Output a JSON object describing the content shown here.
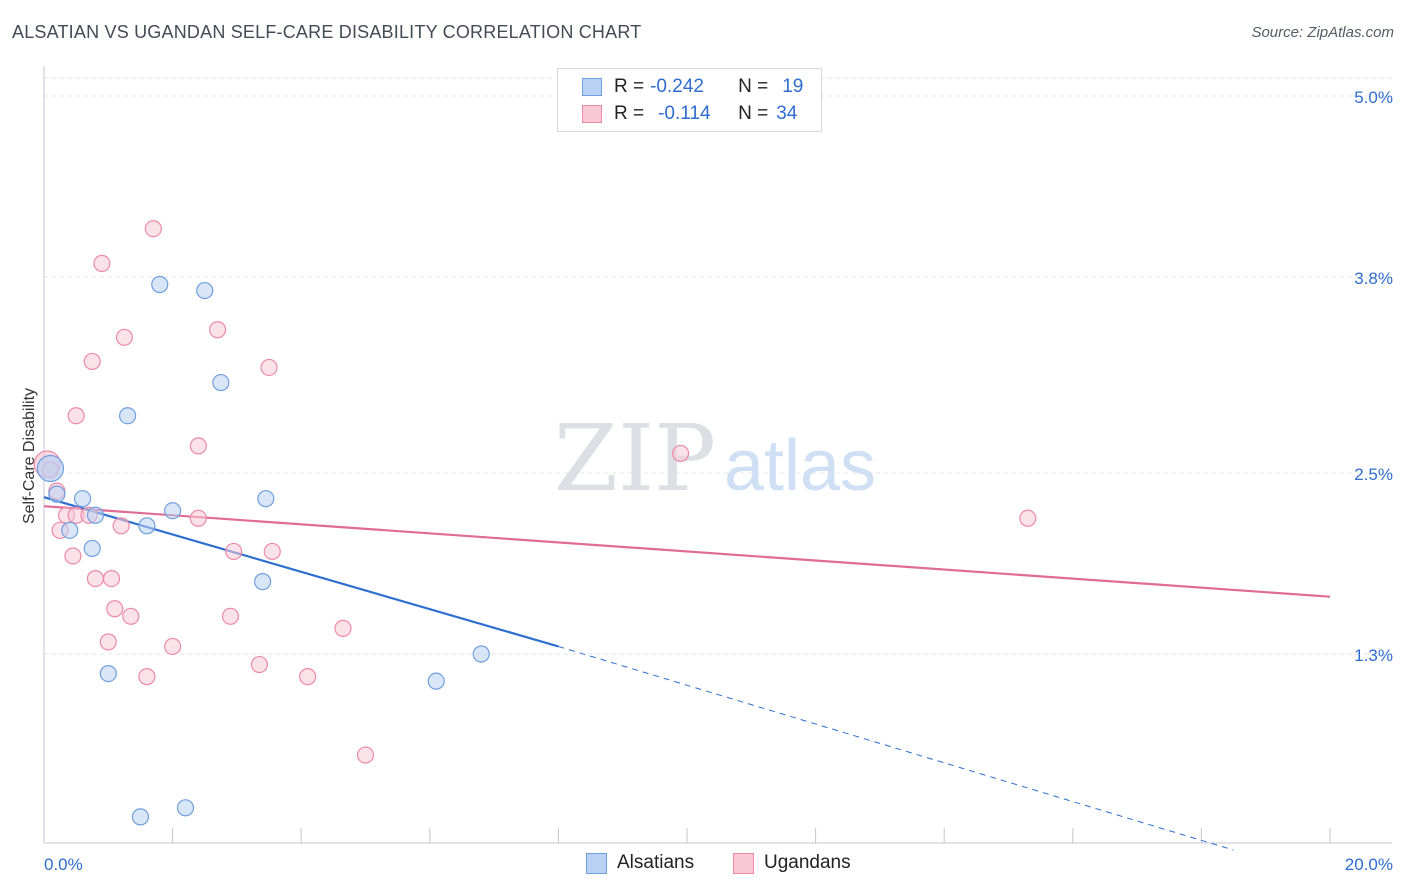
{
  "title": "ALSATIAN VS UGANDAN SELF-CARE DISABILITY CORRELATION CHART",
  "source": "Source: ZipAtlas.com",
  "watermark": {
    "zip": "ZIP",
    "atlas": "atlas"
  },
  "legend": {
    "rows": [
      {
        "r_label": "R =",
        "r_value": "-0.242",
        "n_label": "N =",
        "n_value": "19"
      },
      {
        "r_label": "R =",
        "r_value": "-0.114",
        "n_label": "N =",
        "n_value": "34"
      }
    ]
  },
  "bottom_legend": {
    "alsatians": "Alsatians",
    "ugandans": "Ugandans"
  },
  "colors": {
    "blue_fill": "#b9d1f3",
    "blue_stroke": "#6f9fdf",
    "blue_line": "#2d6fd1",
    "pink_fill": "#f8c8d6",
    "pink_stroke": "#ec8aa8",
    "pink_line": "#e06b94",
    "tick_text": "#2f6dd0",
    "grid": "#e3e5ea"
  },
  "chart_data": {
    "type": "scatter",
    "title": "ALSATIAN VS UGANDAN SELF-CARE DISABILITY CORRELATION CHART",
    "xlabel": "",
    "ylabel": "Self-Care Disability",
    "xlim": [
      0,
      20
    ],
    "ylim": [
      0,
      5.2
    ],
    "x_tick_labels": [
      "0.0%",
      "20.0%"
    ],
    "y_ticks": [
      {
        "value": 5.0,
        "label": "5.0%"
      },
      {
        "value": 3.8,
        "label": "3.8%"
      },
      {
        "value": 2.5,
        "label": "2.5%"
      },
      {
        "value": 1.3,
        "label": "1.3%"
      }
    ],
    "series": [
      {
        "name": "Alsatians",
        "r": -0.242,
        "n": 19,
        "points": [
          [
            0.1,
            2.53
          ],
          [
            0.2,
            2.36
          ],
          [
            0.6,
            2.33
          ],
          [
            0.4,
            2.12
          ],
          [
            0.8,
            2.22
          ],
          [
            0.75,
            2.0
          ],
          [
            1.3,
            2.88
          ],
          [
            1.6,
            2.15
          ],
          [
            1.8,
            3.75
          ],
          [
            2.0,
            2.25
          ],
          [
            2.5,
            3.71
          ],
          [
            2.75,
            3.1
          ],
          [
            3.45,
            2.33
          ],
          [
            3.4,
            1.78
          ],
          [
            1.0,
            1.17
          ],
          [
            1.5,
            0.22
          ],
          [
            2.2,
            0.28
          ],
          [
            6.1,
            1.12
          ],
          [
            6.8,
            1.3
          ]
        ],
        "trend": {
          "x0": 0.0,
          "y0": 2.34,
          "x1": 8.0,
          "y1": 1.35,
          "dash_to_x": 18.5,
          "dash_to_y": 0.0
        }
      },
      {
        "name": "Ugandans",
        "r": -0.114,
        "n": 34,
        "points": [
          [
            0.05,
            2.56
          ],
          [
            0.2,
            2.38
          ],
          [
            0.35,
            2.22
          ],
          [
            0.25,
            2.12
          ],
          [
            0.5,
            2.22
          ],
          [
            0.7,
            2.22
          ],
          [
            0.45,
            1.95
          ],
          [
            0.8,
            1.8
          ],
          [
            1.05,
            1.8
          ],
          [
            1.1,
            1.6
          ],
          [
            1.2,
            2.15
          ],
          [
            0.5,
            2.88
          ],
          [
            0.75,
            3.24
          ],
          [
            1.25,
            3.4
          ],
          [
            0.9,
            3.89
          ],
          [
            1.7,
            4.12
          ],
          [
            1.35,
            1.55
          ],
          [
            1.0,
            1.38
          ],
          [
            1.6,
            1.15
          ],
          [
            2.0,
            1.35
          ],
          [
            2.4,
            2.68
          ],
          [
            2.4,
            2.2
          ],
          [
            2.7,
            3.45
          ],
          [
            2.95,
            1.98
          ],
          [
            2.9,
            1.55
          ],
          [
            3.35,
            1.23
          ],
          [
            3.5,
            3.2
          ],
          [
            3.55,
            1.98
          ],
          [
            4.1,
            1.15
          ],
          [
            4.65,
            1.47
          ],
          [
            5.0,
            0.63
          ],
          [
            9.9,
            2.63
          ],
          [
            15.3,
            2.2
          ],
          [
            0.1,
            2.52
          ]
        ],
        "trend": {
          "x0": 0.0,
          "y0": 2.28,
          "x1": 20.0,
          "y1": 1.68
        }
      }
    ]
  }
}
